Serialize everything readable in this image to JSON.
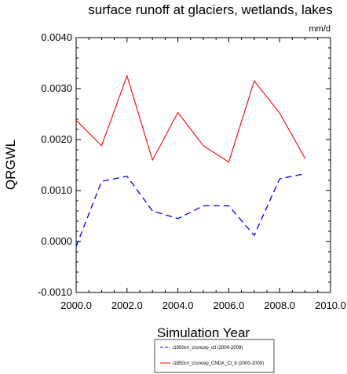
{
  "chart_data": {
    "type": "line",
    "title": "surface runoff at glaciers, wetlands, lakes",
    "units": "mm/d",
    "xlabel": "Simulation Year",
    "ylabel": "QRGWL",
    "xlim": [
      2000,
      2010
    ],
    "ylim": [
      -0.001,
      0.004
    ],
    "x_ticks": [
      2000,
      2002,
      2004,
      2006,
      2008,
      2010
    ],
    "x_tick_labels": [
      "2000.0",
      "2002.0",
      "2004.0",
      "2006.0",
      "2008.0",
      "2010.0"
    ],
    "y_ticks": [
      -0.001,
      0,
      0.001,
      0.002,
      0.003,
      0.004
    ],
    "y_tick_labels": [
      "-0.0010",
      "0.0000",
      "0.0010",
      "0.0020",
      "0.0030",
      "0.0040"
    ],
    "grid": false,
    "legend_position": "bottom-center",
    "x": [
      2000,
      2001,
      2002,
      2003,
      2004,
      2005,
      2006,
      2007,
      2008,
      2009
    ],
    "series": [
      {
        "name": "i1850cn_cruncep_ctl (2000-2009)",
        "color": "#0000ff",
        "dash": "dashed",
        "values": [
          -0.0001,
          0.00118,
          0.00128,
          0.0006,
          0.00045,
          0.0007,
          0.0007,
          0.00012,
          0.00123,
          0.00133
        ]
      },
      {
        "name": "i1850cn_cruncep_CNDA_Cl_b (2000-2009)",
        "color": "#ff0000",
        "dash": "solid",
        "values": [
          0.00238,
          0.00188,
          0.00325,
          0.0016,
          0.00253,
          0.00188,
          0.00156,
          0.00315,
          0.00252,
          0.00163
        ]
      }
    ]
  }
}
